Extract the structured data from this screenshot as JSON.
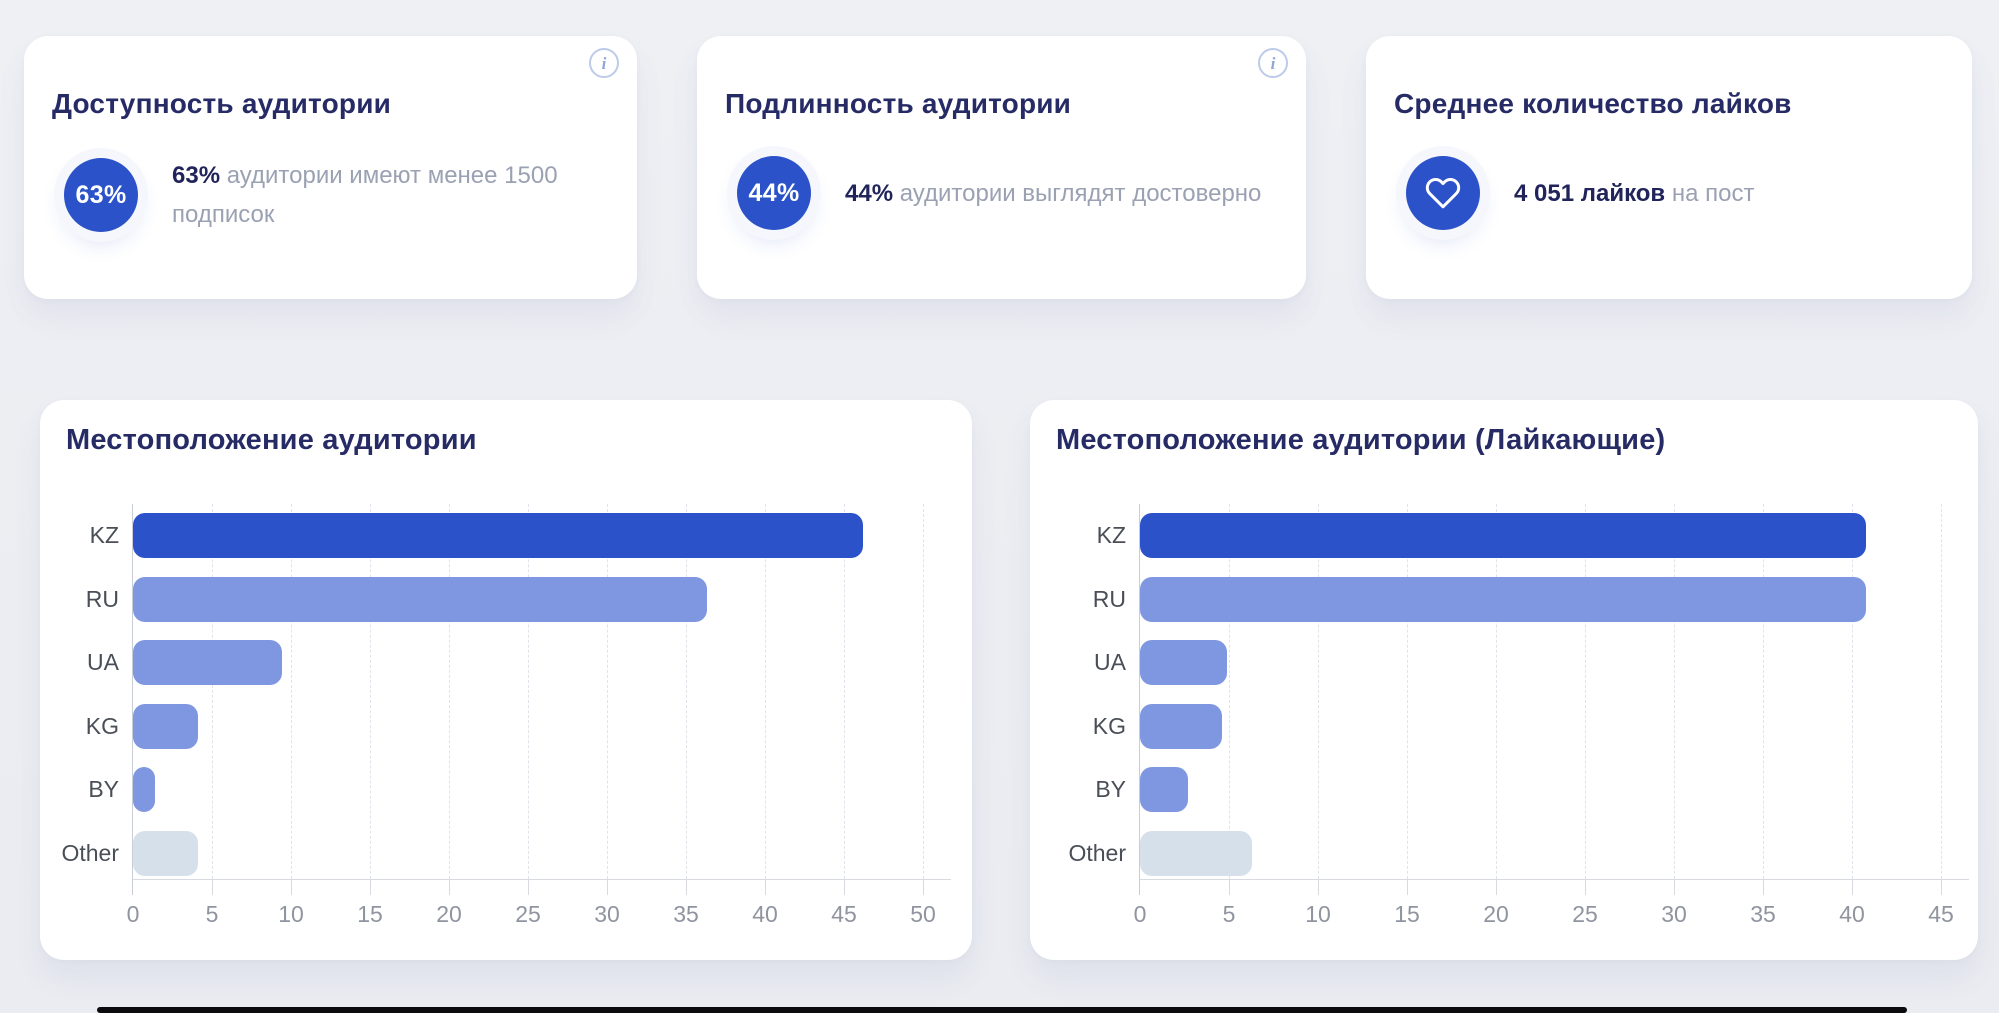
{
  "ui": {
    "info_glyph": "i",
    "accent_blue": "#2b52c8",
    "light_blue": "#7e97e0",
    "muted_bar": "#d5e0eb",
    "title_navy": "#262b66",
    "gray_text": "#9aa1b2"
  },
  "cards": [
    {
      "title": "Доступность аудитории",
      "badge": "63%",
      "stat_bold": "63%",
      "stat_rest": " аудитории имеют менее 1500 подписок"
    },
    {
      "title": "Подлинность аудитории",
      "badge": "44%",
      "stat_bold": "44%",
      "stat_rest": " аудитории выглядят достоверно"
    },
    {
      "title": "Среднее количество лайков",
      "icon": "heart-icon",
      "stat_bold": "4 051 лайков",
      "stat_rest": " на пост"
    }
  ],
  "chart_data": [
    {
      "type": "bar",
      "orientation": "horizontal",
      "title": "Местоположение аудитории",
      "categories": [
        "KZ",
        "RU",
        "UA",
        "KG",
        "BY",
        "Other"
      ],
      "values": [
        46.2,
        36.3,
        9.4,
        4.1,
        1.4,
        4.1
      ],
      "colors": [
        "#2b52c8",
        "#7e97e0",
        "#7e97e0",
        "#7e97e0",
        "#7e97e0",
        "#d5e0eb"
      ],
      "xlabel": "",
      "ylabel": "",
      "xlim": [
        0,
        50
      ],
      "x_step": 5,
      "grid": "dashed-vertical",
      "legend": "none"
    },
    {
      "type": "bar",
      "orientation": "horizontal",
      "title": "Местоположение аудитории (Лайкающие)",
      "categories": [
        "KZ",
        "RU",
        "UA",
        "KG",
        "BY",
        "Other"
      ],
      "values": [
        40.8,
        40.8,
        4.9,
        4.6,
        2.7,
        6.3
      ],
      "colors": [
        "#2b52c8",
        "#7e97e0",
        "#7e97e0",
        "#7e97e0",
        "#7e97e0",
        "#d5e0eb"
      ],
      "xlabel": "",
      "ylabel": "",
      "xlim": [
        0,
        45
      ],
      "x_step": 5,
      "grid": "dashed-vertical",
      "legend": "none"
    }
  ]
}
